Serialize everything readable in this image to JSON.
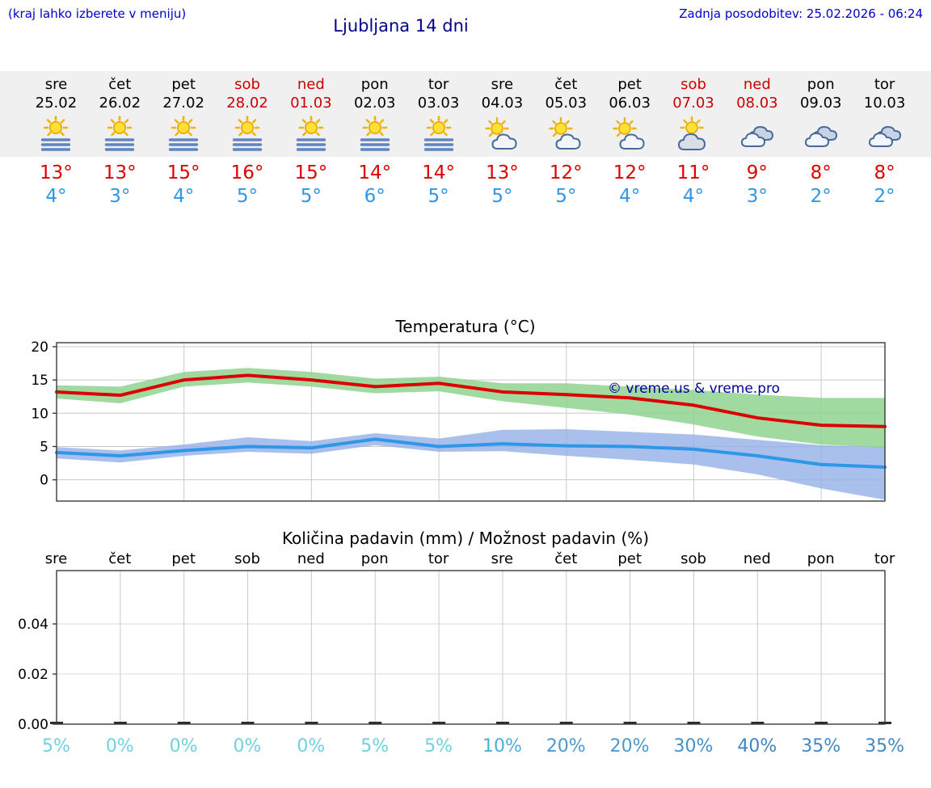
{
  "header": {
    "hint": "(kraj lahko izberete v meniju)",
    "title": "Ljubljana 14 dni",
    "updated": "Zadnja posodobitev: 25.02.2026 - 06:24"
  },
  "colors": {
    "header_blue": "#0000cc",
    "title_blue": "#00008b",
    "high_red": "#dd0000",
    "low_blue": "#2f96e8",
    "weekend_red": "#cc0000",
    "strip_bg": "#f0f0f0"
  },
  "days": [
    {
      "name": "sre",
      "date": "25.02",
      "weekend": false,
      "icon": "sun-fog",
      "high": "13°",
      "low": "4°"
    },
    {
      "name": "čet",
      "date": "26.02",
      "weekend": false,
      "icon": "sun-fog",
      "high": "13°",
      "low": "3°"
    },
    {
      "name": "pet",
      "date": "27.02",
      "weekend": false,
      "icon": "sun-fog",
      "high": "15°",
      "low": "4°"
    },
    {
      "name": "sob",
      "date": "28.02",
      "weekend": true,
      "icon": "sun-fog",
      "high": "16°",
      "low": "5°"
    },
    {
      "name": "ned",
      "date": "01.03",
      "weekend": true,
      "icon": "sun-fog",
      "high": "15°",
      "low": "5°"
    },
    {
      "name": "pon",
      "date": "02.03",
      "weekend": false,
      "icon": "sun-fog",
      "high": "14°",
      "low": "6°"
    },
    {
      "name": "tor",
      "date": "03.03",
      "weekend": false,
      "icon": "sun-fog",
      "high": "14°",
      "low": "5°"
    },
    {
      "name": "sre",
      "date": "04.03",
      "weekend": false,
      "icon": "sun-cloud",
      "high": "13°",
      "low": "5°"
    },
    {
      "name": "čet",
      "date": "05.03",
      "weekend": false,
      "icon": "sun-cloud",
      "high": "12°",
      "low": "5°"
    },
    {
      "name": "pet",
      "date": "06.03",
      "weekend": false,
      "icon": "sun-cloud",
      "high": "12°",
      "low": "4°"
    },
    {
      "name": "sob",
      "date": "07.03",
      "weekend": true,
      "icon": "sun-big-cloud",
      "high": "11°",
      "low": "4°"
    },
    {
      "name": "ned",
      "date": "08.03",
      "weekend": true,
      "icon": "clouds",
      "high": "9°",
      "low": "3°"
    },
    {
      "name": "pon",
      "date": "09.03",
      "weekend": false,
      "icon": "clouds",
      "high": "8°",
      "low": "2°"
    },
    {
      "name": "tor",
      "date": "10.03",
      "weekend": false,
      "icon": "clouds",
      "high": "8°",
      "low": "2°"
    }
  ],
  "chart_data": [
    {
      "type": "line",
      "title": "Temperatura (°C)",
      "categories": [
        "sre",
        "čet",
        "pet",
        "sob",
        "ned",
        "pon",
        "tor",
        "sre",
        "čet",
        "pet",
        "sob",
        "ned",
        "pon",
        "tor"
      ],
      "ylim": [
        -3.2,
        20.6
      ],
      "yticks": [
        0,
        5,
        10,
        15,
        20
      ],
      "grid": true,
      "legend": "none",
      "watermark": "© vreme.us & vreme.pro",
      "series": [
        {
          "name": "max temperatura",
          "color": "#dd0000",
          "band_color": "#8fd48f",
          "band_opacity": 0.85,
          "values": [
            13.2,
            12.7,
            15.0,
            15.7,
            15.0,
            14.0,
            14.5,
            13.2,
            12.8,
            12.3,
            11.2,
            9.3,
            8.2,
            8.0
          ],
          "band_upper": [
            14.2,
            14.0,
            16.2,
            16.8,
            16.2,
            15.2,
            15.5,
            14.5,
            14.5,
            14.0,
            13.5,
            12.8,
            12.3,
            12.3
          ],
          "band_lower": [
            12.2,
            11.5,
            14.0,
            14.6,
            14.0,
            13.0,
            13.3,
            11.8,
            10.8,
            9.8,
            8.3,
            6.5,
            5.3,
            4.8
          ]
        },
        {
          "name": "min temperatura",
          "color": "#2f96e8",
          "band_color": "#94b0e8",
          "band_opacity": 0.8,
          "values": [
            4.1,
            3.6,
            4.4,
            5.0,
            4.8,
            6.1,
            5.0,
            5.4,
            5.1,
            5.0,
            4.6,
            3.6,
            2.3,
            1.9
          ],
          "band_upper": [
            4.9,
            4.4,
            5.3,
            6.4,
            5.8,
            7.0,
            6.2,
            7.5,
            7.6,
            7.2,
            6.8,
            6.0,
            5.2,
            4.9
          ],
          "band_lower": [
            3.2,
            2.6,
            3.6,
            4.2,
            3.9,
            5.2,
            4.2,
            4.3,
            3.6,
            3.0,
            2.3,
            0.8,
            -1.3,
            -3.0
          ]
        }
      ]
    },
    {
      "type": "bar",
      "title": "Količina padavin (mm) / Možnost padavin (%)",
      "categories": [
        "sre",
        "čet",
        "pet",
        "sob",
        "ned",
        "pon",
        "tor",
        "sre",
        "čet",
        "pet",
        "sob",
        "ned",
        "pon",
        "tor"
      ],
      "values": [
        0,
        0,
        0,
        0,
        0,
        0,
        0,
        0,
        0,
        0,
        0,
        0,
        0,
        0
      ],
      "ylim": [
        0,
        0.06
      ],
      "ytick_labels": [
        "0.00",
        "0.02",
        "0.04"
      ],
      "grid": true,
      "percent_labels": [
        "5%",
        "0%",
        "0%",
        "0%",
        "0%",
        "5%",
        "5%",
        "10%",
        "20%",
        "20%",
        "30%",
        "40%",
        "35%",
        "35%"
      ],
      "percent_colors": [
        "#6fd2da",
        "#6fd2da",
        "#6fd2da",
        "#6fd2da",
        "#6fd2da",
        "#6fd2da",
        "#6fd2da",
        "#49aed6",
        "#4a99cf",
        "#4a99cf",
        "#4590c9",
        "#3f86c2",
        "#4189c4",
        "#4189c4"
      ]
    }
  ]
}
